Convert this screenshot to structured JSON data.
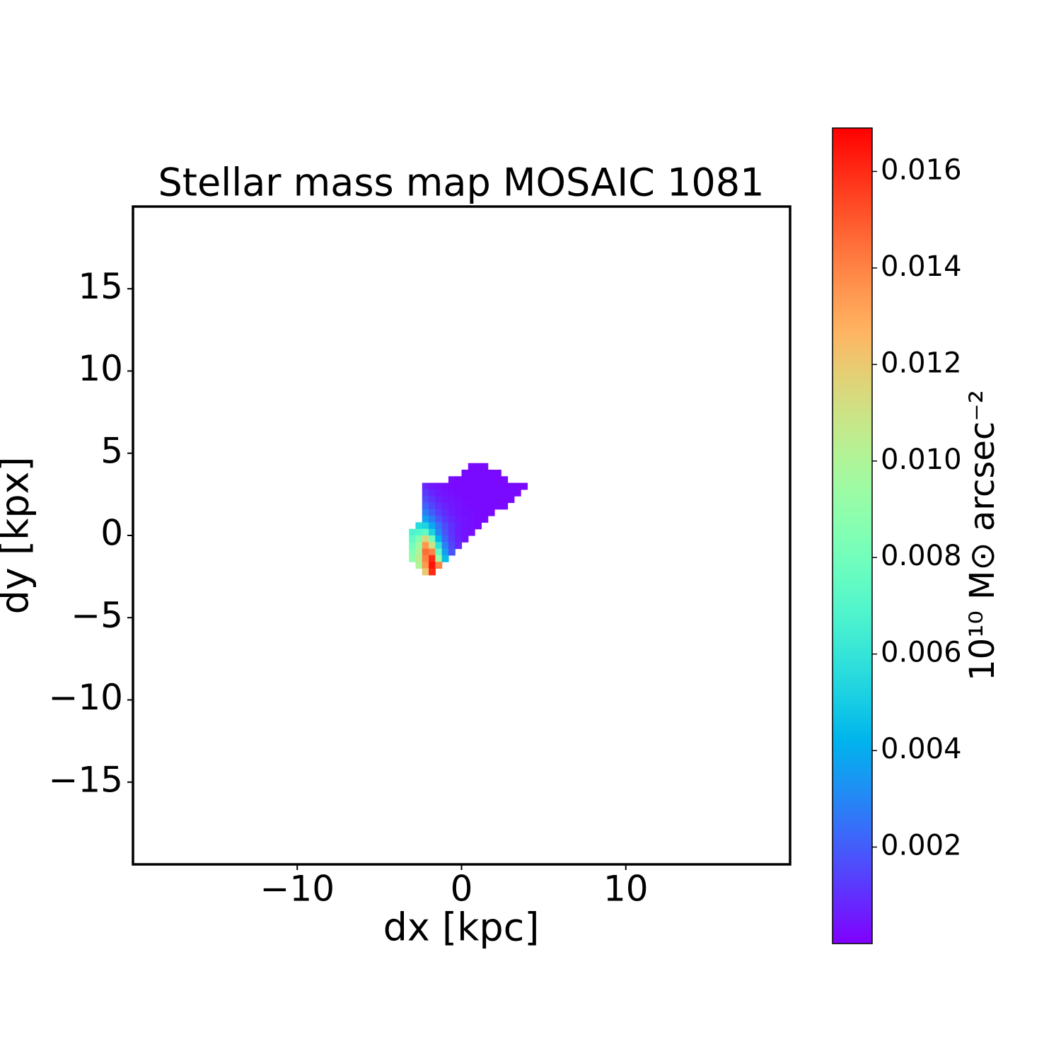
{
  "chart_data": {
    "type": "heatmap",
    "title": "Stellar mass map MOSAIC 1081",
    "x_label": "dx [kpc]",
    "y_label": "dy [kpx]",
    "colorbar_label": "10¹⁰ M⊙ arcsec⁻²",
    "colormap": "rainbow",
    "xlim": [
      -20,
      20
    ],
    "ylim": [
      -20,
      20
    ],
    "xticks": [
      {
        "value": -10,
        "label": "−10"
      },
      0,
      10
    ],
    "yticks": [
      {
        "value": -15,
        "label": "−15"
      },
      {
        "value": -10,
        "label": "−10"
      },
      {
        "value": -5,
        "label": "−5"
      },
      0,
      5,
      10,
      15
    ],
    "clim": [
      0,
      0.0169
    ],
    "cticks": [
      0.002,
      0.004,
      0.006,
      0.008,
      {
        "value": 0.01,
        "label": "0.010"
      },
      0.012,
      0.014,
      0.016
    ],
    "x": [
      -3.0,
      -2.6,
      -2.2,
      -1.8,
      -1.4,
      -1.0,
      -0.6,
      -0.2,
      0.2,
      0.6,
      1.0,
      1.4,
      1.8,
      2.2,
      2.6,
      3.0,
      3.4,
      3.8
    ],
    "y": [
      4.2,
      3.8,
      3.4,
      3.0,
      2.6,
      2.2,
      1.8,
      1.4,
      1.0,
      0.6,
      0.2,
      -0.2,
      -0.6,
      -1.0,
      -1.4,
      -1.8,
      -2.2
    ],
    "z": [
      [
        null,
        null,
        null,
        null,
        null,
        null,
        null,
        null,
        null,
        0.0002,
        0.0002,
        0.0002,
        null,
        null,
        null,
        null,
        null,
        null
      ],
      [
        null,
        null,
        null,
        null,
        null,
        null,
        null,
        null,
        0.0002,
        0.0002,
        0.0002,
        0.0002,
        0.0002,
        0.0002,
        null,
        null,
        null,
        null
      ],
      [
        null,
        null,
        null,
        null,
        null,
        null,
        0.0003,
        0.0002,
        0.0002,
        0.0002,
        0.0002,
        0.0002,
        0.0002,
        0.0002,
        0.0002,
        null,
        null,
        null
      ],
      [
        null,
        null,
        0.0008,
        0.0005,
        0.0004,
        0.0003,
        0.0002,
        0.0002,
        0.0002,
        0.0002,
        0.0002,
        0.0002,
        0.0002,
        0.0002,
        0.0002,
        0.0002,
        0.0002,
        0.0002
      ],
      [
        null,
        null,
        0.0012,
        0.0008,
        0.0005,
        0.0004,
        0.0003,
        0.0002,
        0.0002,
        0.0002,
        0.0002,
        0.0002,
        0.0002,
        0.0002,
        0.0002,
        0.0002,
        0.0002,
        null
      ],
      [
        null,
        null,
        0.0016,
        0.0011,
        0.0007,
        0.0005,
        0.0004,
        0.0003,
        0.0002,
        0.0002,
        0.0002,
        0.0002,
        0.0002,
        0.0002,
        0.0002,
        0.0002,
        null,
        null
      ],
      [
        null,
        null,
        0.0021,
        0.0015,
        0.001,
        0.0007,
        0.0005,
        0.0004,
        0.0003,
        0.0002,
        0.0002,
        0.0002,
        0.0002,
        0.0002,
        0.0002,
        null,
        null,
        null
      ],
      [
        null,
        null,
        0.0028,
        0.002,
        0.0013,
        0.0009,
        0.0006,
        0.0004,
        0.0003,
        0.0003,
        0.0002,
        0.0002,
        0.0002,
        null,
        null,
        null,
        null,
        null
      ],
      [
        null,
        null,
        0.0037,
        0.0027,
        0.0018,
        0.0012,
        0.0008,
        0.0005,
        0.0004,
        0.0003,
        0.0002,
        0.0002,
        null,
        null,
        null,
        null,
        null,
        null
      ],
      [
        null,
        0.0055,
        0.0052,
        0.0038,
        0.0025,
        0.0016,
        0.001,
        0.0006,
        0.0004,
        0.0003,
        0.0002,
        null,
        null,
        null,
        null,
        null,
        null,
        null
      ],
      [
        0.0068,
        0.007,
        0.0075,
        0.0052,
        0.003,
        0.0018,
        0.001,
        0.0006,
        0.0004,
        0.0003,
        null,
        null,
        null,
        null,
        null,
        null,
        null,
        null
      ],
      [
        0.0075,
        0.0085,
        0.0115,
        0.008,
        0.0042,
        0.0022,
        0.0012,
        0.0007,
        0.0004,
        null,
        null,
        null,
        null,
        null,
        null,
        null,
        null,
        null
      ],
      [
        0.008,
        0.0095,
        0.0135,
        0.011,
        0.0058,
        0.0028,
        0.0015,
        0.0008,
        null,
        null,
        null,
        null,
        null,
        null,
        null,
        null,
        null,
        null
      ],
      [
        0.0085,
        0.01,
        0.0145,
        0.014,
        0.0075,
        0.0035,
        0.0018,
        null,
        null,
        null,
        null,
        null,
        null,
        null,
        null,
        null,
        null,
        null
      ],
      [
        0.009,
        0.0105,
        0.014,
        0.016,
        0.0095,
        0.0045,
        null,
        null,
        null,
        null,
        null,
        null,
        null,
        null,
        null,
        null,
        null,
        null
      ],
      [
        null,
        0.01,
        0.0135,
        0.0165,
        0.014,
        null,
        null,
        null,
        null,
        null,
        null,
        null,
        null,
        null,
        null,
        null,
        null,
        null
      ],
      [
        null,
        null,
        0.012,
        0.016,
        null,
        null,
        null,
        null,
        null,
        null,
        null,
        null,
        null,
        null,
        null,
        null,
        null,
        null
      ]
    ]
  }
}
